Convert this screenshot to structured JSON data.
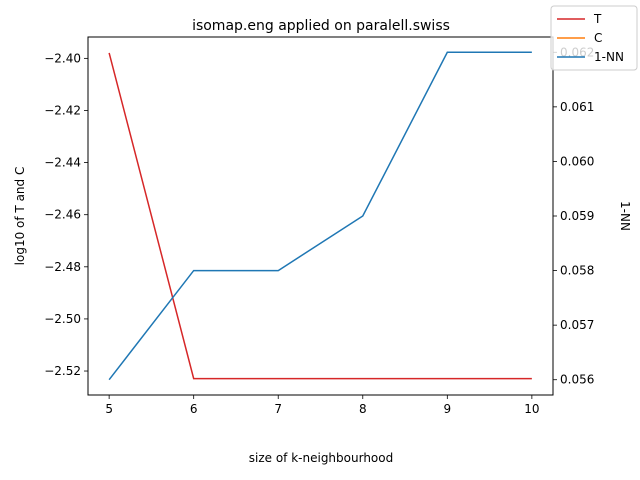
{
  "chart_data": {
    "type": "line",
    "title": "isomap.eng applied on paralell.swiss",
    "xlabel": "size of k-neighbourhood",
    "ylabel_left": "log10 of T and C",
    "ylabel_right": "1-NN",
    "x": [
      5,
      6,
      7,
      8,
      9,
      10
    ],
    "xlim": [
      4.75,
      10.25
    ],
    "ylim_left": [
      -2.5292,
      -2.3918
    ],
    "ylim_right": [
      0.05572,
      0.06228
    ],
    "xticks": [
      "5",
      "6",
      "7",
      "8",
      "9",
      "10"
    ],
    "yticks_left": [
      "−2.40",
      "−2.42",
      "−2.44",
      "−2.46",
      "−2.48",
      "−2.50",
      "−2.52"
    ],
    "yticks_left_values": [
      -2.4,
      -2.42,
      -2.44,
      -2.46,
      -2.48,
      -2.5,
      -2.52
    ],
    "yticks_right": [
      "0.056",
      "0.057",
      "0.058",
      "0.059",
      "0.060",
      "0.061",
      "0.062"
    ],
    "yticks_right_values": [
      0.056,
      0.057,
      0.058,
      0.059,
      0.06,
      0.061,
      0.062
    ],
    "series": [
      {
        "name": "T",
        "axis": "left",
        "color": "#d62728",
        "values": [
          -2.3979,
          -2.5229,
          -2.5229,
          -2.5229,
          -2.5229,
          -2.5229
        ]
      },
      {
        "name": "C",
        "axis": "left",
        "color": "#ff7f0e",
        "values": [
          null,
          null,
          null,
          null,
          null,
          null
        ]
      },
      {
        "name": "1-NN",
        "axis": "right",
        "color": "#1f77b4",
        "values": [
          0.056,
          0.058,
          0.058,
          0.059,
          0.062,
          0.062
        ]
      }
    ],
    "legend_position": "top-right",
    "grid": false
  }
}
